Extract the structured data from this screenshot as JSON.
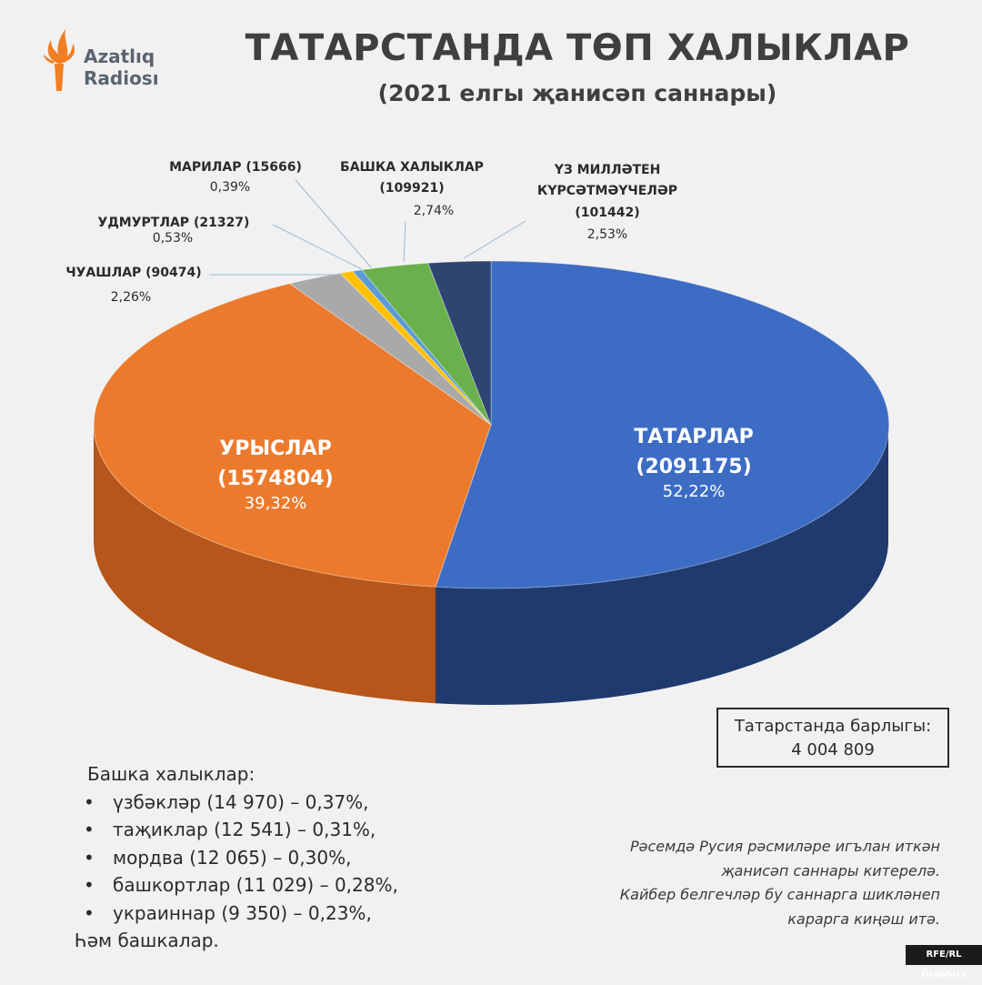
{
  "header": {
    "logo_line1": "Azatlıq",
    "logo_line2": "Radiosı",
    "title": "ТАТАРСТАНДА ТӨП ХАЛЫКЛАР",
    "subtitle": "(2021 елгы җанисәп саннары)"
  },
  "chart_data": {
    "type": "pie",
    "title": "ТАТАРСТАНДА ТӨП ХАЛЫКЛАР",
    "subtitle": "(2021 елгы җанисәп саннары)",
    "slices": [
      {
        "name": "ТАТАРЛАР",
        "count": "(2091175)",
        "percent_label": "52,22%",
        "value": 52.22,
        "color": "#3d6cc4",
        "side_color": "#1f3a6e"
      },
      {
        "name": "УРЫСЛАР",
        "count": "(1574804)",
        "percent_label": "39,32%",
        "value": 39.32,
        "color": "#ec7a2c",
        "side_color": "#b6561a"
      },
      {
        "name": "ЧУАШЛАР (90474)",
        "count": "",
        "percent_label": "2,26%",
        "value": 2.26,
        "color": "#a9a9a9",
        "side_color": "#7a7a7a"
      },
      {
        "name": "УДМУРТЛАР (21327)",
        "count": "",
        "percent_label": "0,53%",
        "value": 0.53,
        "color": "#ffc000",
        "side_color": "#c79500"
      },
      {
        "name": "МАРИЛАР (15666)",
        "count": "",
        "percent_label": "0,39%",
        "value": 0.39,
        "color": "#5b9bd5",
        "side_color": "#3a6fa0"
      },
      {
        "name": "БАШКА ХАЛЫКЛАР",
        "count": "(109921)",
        "percent_label": "2,74%",
        "value": 2.74,
        "color": "#6ab04c",
        "side_color": "#447a2f"
      },
      {
        "name": "ҮЗ МИЛЛӘТЕН",
        "name2": "КҮРСӘТМӘҮЧЕЛӘР",
        "count": "(101442)",
        "percent_label": "2,53%",
        "value": 2.53,
        "color": "#2e4572",
        "side_color": "#1b2a47"
      }
    ]
  },
  "total_box": {
    "label": "Татарстанда барлыгы:",
    "value": "4 004 809"
  },
  "others": {
    "heading": "Башка халыклар:",
    "items": [
      "үзбәкләр (14 970) – 0,37%,",
      "таҗиклар (12 541) – 0,31%,",
      "мордва (12 065) – 0,30%,",
      "башкортлар (11 029) – 0,28%,",
      "украиннар (9 350) – 0,23%,"
    ],
    "footer": "Һәм башкалар."
  },
  "disclaimer": [
    "Рәсемдә Русия рәсмиләре игълан иткән",
    "җанисәп саннары китерелә.",
    "Кайбер белгечләр бу саннарга шикләнеп",
    "карарга киңәш итә."
  ],
  "credit": "RFE/RL Graphics"
}
